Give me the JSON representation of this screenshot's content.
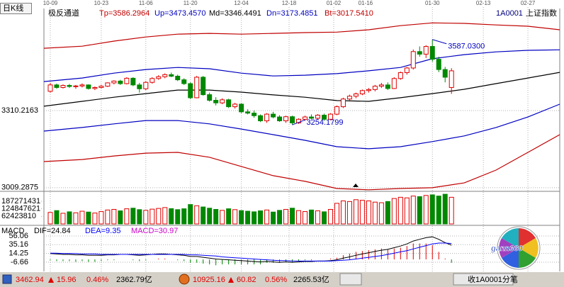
{
  "period": "日K线",
  "chart_data": [
    {
      "type": "candlestick",
      "indicator": "极反通道",
      "symbol": "1A0001",
      "symbol_name": "上证指数",
      "up_color": "#e00000",
      "down_color": "#008800",
      "x": [
        0,
        1,
        2,
        3,
        4,
        5,
        6,
        7,
        8,
        9,
        10,
        11,
        12,
        13,
        14,
        15,
        16,
        17,
        18,
        19,
        20,
        21,
        22,
        23,
        24,
        25,
        26,
        27,
        28,
        29,
        30,
        31,
        32,
        33,
        34,
        35,
        36,
        37,
        38,
        39,
        40,
        41,
        42,
        43,
        44,
        45,
        46,
        47,
        48,
        49,
        50,
        51,
        52,
        53,
        54,
        55,
        56,
        57,
        58,
        59,
        60,
        61,
        62,
        63
      ],
      "open": [
        3385,
        3410,
        3400,
        3408,
        3404,
        3406,
        3410,
        3396,
        3400,
        3405,
        3418,
        3425,
        3415,
        3436,
        3410,
        3395,
        3420,
        3435,
        3442,
        3450,
        3444,
        3430,
        3415,
        3360,
        3440,
        3372,
        3350,
        3340,
        3352,
        3325,
        3335,
        3305,
        3300,
        3290,
        3270,
        3296,
        3285,
        3270,
        3286,
        3262,
        3276,
        3285,
        3280,
        3292,
        3276,
        3296,
        3325,
        3355,
        3366,
        3375,
        3388,
        3392,
        3405,
        3410,
        3396,
        3435,
        3458,
        3476,
        3540,
        3530,
        3560,
        3510,
        3470,
        3400
      ],
      "high": [
        3418,
        3415,
        3412,
        3414,
        3410,
        3416,
        3412,
        3404,
        3410,
        3420,
        3428,
        3430,
        3440,
        3440,
        3418,
        3425,
        3440,
        3448,
        3455,
        3458,
        3450,
        3436,
        3420,
        3445,
        3445,
        3380,
        3362,
        3358,
        3356,
        3340,
        3338,
        3315,
        3310,
        3295,
        3300,
        3305,
        3292,
        3290,
        3290,
        3280,
        3290,
        3295,
        3296,
        3298,
        3300,
        3330,
        3360,
        3372,
        3380,
        3392,
        3398,
        3410,
        3418,
        3420,
        3440,
        3462,
        3480,
        3548,
        3560,
        3565,
        3587.03,
        3520,
        3480,
        3475
      ],
      "low": [
        3380,
        3395,
        3396,
        3398,
        3395,
        3400,
        3392,
        3390,
        3396,
        3402,
        3412,
        3410,
        3412,
        3405,
        3380,
        3390,
        3415,
        3430,
        3436,
        3440,
        3425,
        3410,
        3355,
        3358,
        3368,
        3345,
        3330,
        3335,
        3320,
        3318,
        3300,
        3295,
        3282,
        3265,
        3262,
        3280,
        3266,
        3262,
        3254.1799,
        3258,
        3270,
        3275,
        3274,
        3270,
        3272,
        3292,
        3320,
        3345,
        3358,
        3370,
        3380,
        3385,
        3398,
        3390,
        3394,
        3430,
        3450,
        3470,
        3520,
        3515,
        3500,
        3460,
        3420,
        3375
      ],
      "close": [
        3410,
        3400,
        3408,
        3404,
        3406,
        3410,
        3396,
        3400,
        3405,
        3418,
        3425,
        3415,
        3436,
        3410,
        3395,
        3420,
        3435,
        3442,
        3450,
        3444,
        3430,
        3415,
        3360,
        3440,
        3372,
        3350,
        3340,
        3352,
        3325,
        3335,
        3305,
        3300,
        3290,
        3270,
        3296,
        3285,
        3270,
        3286,
        3262,
        3276,
        3285,
        3280,
        3292,
        3276,
        3296,
        3325,
        3355,
        3366,
        3375,
        3388,
        3392,
        3405,
        3410,
        3396,
        3435,
        3458,
        3476,
        3540,
        3530,
        3560,
        3510,
        3470,
        3440,
        3465
      ],
      "xlim": [
        -1,
        80
      ],
      "xticks": [
        {
          "value": 0,
          "label": "10-09"
        },
        {
          "value": 8,
          "label": "10-23"
        },
        {
          "value": 15,
          "label": "11-06"
        },
        {
          "value": 22,
          "label": "11-20"
        },
        {
          "value": 30,
          "label": "12-04"
        },
        {
          "value": 37.5,
          "label": "12-18"
        },
        {
          "value": 44.5,
          "label": "01-02"
        },
        {
          "value": 49.5,
          "label": "01-16"
        },
        {
          "value": 60,
          "label": "01-30"
        },
        {
          "value": 68,
          "label": "02-13"
        },
        {
          "value": 75,
          "label": "02-27"
        }
      ],
      "ylim": [
        2995,
        3708
      ],
      "yticks": [
        3310.2163,
        3009.2875
      ],
      "grid": true,
      "series": [
        {
          "name": "Tp=3586.2964",
          "color": "#c00000",
          "x": [
            -1,
            5,
            10,
            15,
            20,
            25,
            30,
            35,
            40,
            45,
            50,
            55,
            60,
            65,
            70,
            75,
            80
          ],
          "values": [
            3553,
            3561,
            3581,
            3597,
            3608,
            3611,
            3608,
            3611,
            3614,
            3616,
            3625,
            3641,
            3652,
            3650,
            3644,
            3639,
            3625
          ]
        },
        {
          "name": "Up=3473.4570",
          "color": "#0000c0",
          "x": [
            -1,
            5,
            10,
            15,
            20,
            25,
            30,
            35,
            40,
            45,
            50,
            55,
            60,
            65,
            70,
            75,
            80
          ],
          "values": [
            3423,
            3437,
            3456,
            3470,
            3478,
            3473,
            3456,
            3445,
            3448,
            3454,
            3465,
            3478,
            3512,
            3528,
            3539,
            3545,
            3547
          ]
        },
        {
          "name": "Md=3346.4491",
          "color": "#000000",
          "x": [
            -1,
            5,
            10,
            15,
            20,
            25,
            30,
            35,
            40,
            45,
            50,
            55,
            60,
            65,
            70,
            75,
            80
          ],
          "values": [
            3327,
            3346,
            3362,
            3376,
            3390,
            3390,
            3382,
            3371,
            3362,
            3349,
            3346,
            3360,
            3376,
            3393,
            3415,
            3437,
            3459
          ]
        },
        {
          "name": "Dn=3173.4851",
          "color": "#0000c0",
          "x": [
            -1,
            5,
            10,
            15,
            20,
            25,
            30,
            35,
            40,
            45,
            50,
            55,
            60,
            65,
            70,
            75,
            80
          ],
          "values": [
            3230,
            3244,
            3258,
            3271,
            3271,
            3258,
            3238,
            3216,
            3194,
            3169,
            3161,
            3169,
            3189,
            3211,
            3244,
            3285,
            3335
          ]
        },
        {
          "name": "Bt=3017.5410",
          "color": "#c00000",
          "x": [
            -1,
            5,
            10,
            15,
            20,
            25,
            30,
            35,
            40,
            45,
            50,
            55,
            60,
            65,
            70,
            75,
            80
          ],
          "values": [
            3111,
            3119,
            3133,
            3144,
            3147,
            3128,
            3092,
            3056,
            3034,
            3006,
            3001,
            3006,
            3009,
            3028,
            3078,
            3147,
            3216
          ]
        }
      ],
      "annotations": [
        {
          "label": "3587.0300",
          "x": 60,
          "value": 3587.03,
          "color": "#0000c0"
        },
        {
          "label": "3254.1799",
          "x": 38,
          "value": 3254.1799,
          "color": "#0000c0"
        }
      ]
    },
    {
      "type": "bar",
      "values": [
        95000000,
        110000000,
        88000000,
        100000000,
        92000000,
        105000000,
        98000000,
        90000000,
        102000000,
        115000000,
        120000000,
        108000000,
        125000000,
        130000000,
        118000000,
        112000000,
        122000000,
        128000000,
        135000000,
        126000000,
        118000000,
        125000000,
        160000000,
        150000000,
        140000000,
        130000000,
        120000000,
        112000000,
        125000000,
        118000000,
        110000000,
        105000000,
        100000000,
        108000000,
        115000000,
        98000000,
        112000000,
        120000000,
        130000000,
        110000000,
        102000000,
        115000000,
        108000000,
        100000000,
        120000000,
        170000000,
        190000000,
        185000000,
        200000000,
        195000000,
        190000000,
        180000000,
        175000000,
        185000000,
        210000000,
        220000000,
        215000000,
        230000000,
        225000000,
        235000000,
        240000000,
        230000000,
        245000000,
        220000000
      ],
      "ylim": [
        0,
        269000000
      ],
      "yticks": [
        187271431,
        124847621,
        62423810
      ]
    },
    {
      "type": "macd",
      "title": "MACD",
      "series": [
        {
          "name": "DIF=24.84",
          "color": "#000000",
          "values": [
            14,
            13,
            12,
            12,
            11,
            11,
            10,
            10,
            10,
            11,
            11,
            12,
            12,
            11,
            10,
            11,
            12,
            13,
            13,
            12,
            11,
            10,
            7,
            7,
            5,
            3,
            1,
            0,
            -1,
            -2,
            -3,
            -4,
            -5,
            -6,
            -5,
            -6,
            -7,
            -6,
            -7,
            -6,
            -5,
            -5,
            -4,
            -4,
            -3,
            -1,
            3,
            6,
            10,
            13,
            16,
            19,
            22,
            24,
            28,
            32,
            37,
            44,
            48,
            52,
            54,
            48,
            40,
            34
          ]
        },
        {
          "name": "DEA=9.35",
          "color": "#0000ff",
          "values": [
            15,
            15,
            14,
            14,
            14,
            13,
            13,
            13,
            12,
            12,
            12,
            12,
            12,
            12,
            12,
            12,
            12,
            12,
            12,
            12,
            12,
            12,
            11,
            11,
            10,
            9,
            8,
            6,
            5,
            4,
            3,
            2,
            1,
            0,
            -1,
            -2,
            -3,
            -3,
            -4,
            -4,
            -4,
            -4,
            -4,
            -4,
            -4,
            -3,
            -2,
            -1,
            1,
            3,
            5,
            7,
            9,
            12,
            15,
            18,
            21,
            25,
            29,
            33,
            37,
            39,
            39,
            38
          ]
        }
      ],
      "histogram": {
        "name": "MACD=30.97",
        "color": "#cc00cc",
        "up_color": "#e00000",
        "down_color": "#008800",
        "values": [
          -2,
          -4,
          -4,
          -4,
          -6,
          -4,
          -6,
          -6,
          -4,
          -2,
          -2,
          0,
          0,
          -2,
          -4,
          -2,
          0,
          2,
          2,
          0,
          -2,
          -4,
          -8,
          -8,
          -10,
          -12,
          -14,
          -12,
          -12,
          -12,
          -12,
          -12,
          -12,
          -12,
          -8,
          -8,
          -8,
          -6,
          -6,
          -4,
          -2,
          -2,
          0,
          0,
          2,
          4,
          10,
          14,
          18,
          20,
          22,
          24,
          26,
          24,
          26,
          28,
          32,
          38,
          38,
          38,
          34,
          18,
          2,
          -8
        ]
      },
      "ylim": [
        -27,
        78
      ],
      "yticks": [
        56.06,
        35.16,
        14.25,
        -6.66
      ],
      "grid": true
    }
  ],
  "status_bar": {
    "sh": {
      "index": "3462.94",
      "change": "15.96",
      "percent": "0.46%",
      "amount": "2362.79亿"
    },
    "sz": {
      "index": "10925.16",
      "change": "60.82",
      "percent": "0.56%",
      "amount": "2265.53亿"
    },
    "right": "收1A0001分笔"
  },
  "logo": {
    "text": "gann360"
  }
}
